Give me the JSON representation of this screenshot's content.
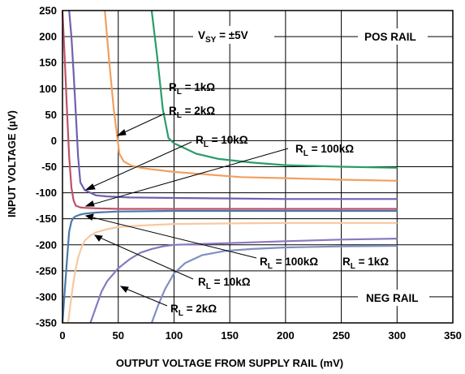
{
  "chart_data": {
    "type": "line",
    "title": "",
    "xlabel": "OUTPUT VOLTAGE FROM SUPPLY RAIL (mV)",
    "ylabel": "INPUT VOLTAGE (µV)",
    "xlim": [
      0,
      350
    ],
    "ylim": [
      -350,
      250
    ],
    "xticks": [
      "0",
      "50",
      "100",
      "150",
      "200",
      "250",
      "300",
      "350"
    ],
    "yticks": [
      "250",
      "200",
      "150",
      "100",
      "50",
      "0",
      "-50",
      "-100",
      "-150",
      "-200",
      "-250",
      "-300",
      "-350"
    ],
    "grid": true,
    "series_colors": {
      "pos_1k": "#2a9c6a",
      "pos_2k": "#f0a060",
      "pos_10k": "#7060b0",
      "pos_100k": "#c0506a",
      "neg_100k": "#4a78a8",
      "neg_1k": "#8090c0",
      "neg_10k": "#8a78c0",
      "neg_2k": "#f8c8a0"
    },
    "series": [
      {
        "x": [
          80,
          85,
          90,
          95,
          100,
          110,
          120,
          140,
          170,
          200,
          250,
          300
        ],
        "y": [
          250,
          160,
          60,
          5,
          -5,
          -15,
          -25,
          -35,
          -42,
          -47,
          -50,
          -52
        ]
      },
      {
        "x": [
          38,
          42,
          46,
          49,
          51,
          55,
          62,
          70,
          80,
          100,
          130,
          160,
          200,
          250,
          300
        ],
        "y": [
          250,
          150,
          60,
          10,
          -25,
          -40,
          -48,
          -52,
          -55,
          -60,
          -65,
          -70,
          -72,
          -75,
          -77
        ]
      },
      {
        "x": [
          6,
          8,
          10,
          12,
          14,
          16,
          20,
          25,
          30,
          40,
          60,
          100,
          150,
          200,
          250,
          300
        ],
        "y": [
          250,
          200,
          130,
          50,
          -30,
          -80,
          -95,
          -100,
          -105,
          -107,
          -109,
          -110,
          -111,
          -112,
          -112,
          -112
        ]
      },
      {
        "x": [
          0,
          2,
          4,
          6,
          8,
          10,
          12,
          16,
          20,
          30,
          50,
          100,
          200,
          300
        ],
        "y": [
          250,
          160,
          60,
          -30,
          -90,
          -115,
          -125,
          -128,
          -129,
          -130,
          -131,
          -131,
          -131,
          -131
        ]
      },
      {
        "x": [
          0,
          2,
          4,
          6,
          8,
          10,
          12,
          16,
          20,
          30,
          50,
          100,
          200,
          300
        ],
        "y": [
          -350,
          -290,
          -230,
          -175,
          -155,
          -148,
          -145,
          -142,
          -140,
          -138,
          -136,
          -135,
          -135,
          -135
        ]
      },
      {
        "x": [
          80,
          86,
          92,
          100,
          110,
          125,
          145,
          170,
          200,
          250,
          300
        ],
        "y": [
          -350,
          -315,
          -285,
          -255,
          -235,
          -220,
          -212,
          -208,
          -205,
          -203,
          -202
        ]
      },
      {
        "x": [
          25,
          30,
          35,
          40,
          50,
          60,
          70,
          80,
          90,
          100,
          130,
          160,
          200,
          250,
          300
        ],
        "y": [
          -350,
          -320,
          -290,
          -270,
          -245,
          -228,
          -215,
          -208,
          -203,
          -200,
          -198,
          -196,
          -193,
          -190,
          -188
        ]
      },
      {
        "x": [
          5,
          8,
          10,
          12,
          14,
          16,
          18,
          20,
          25,
          30,
          40,
          50,
          70,
          100,
          150,
          200,
          250,
          300
        ],
        "y": [
          -350,
          -300,
          -270,
          -245,
          -225,
          -212,
          -200,
          -192,
          -182,
          -176,
          -170,
          -166,
          -163,
          -160,
          -159,
          -158,
          -158,
          -158
        ]
      }
    ],
    "annotations": {
      "vsy_main": "V",
      "vsy_sub": "SY",
      "vsy_rest": " = ±5V",
      "pos_rail": "POS RAIL",
      "neg_rail": "NEG RAIL",
      "rl_main": "R",
      "rl_sub": "L",
      "pos_1k": " = 1kΩ",
      "pos_2k": " = 2kΩ",
      "pos_10k": " = 10kΩ",
      "pos_100k": " = 100kΩ",
      "neg_100k": " = 100kΩ",
      "neg_1k": " = 1kΩ",
      "neg_10k": " = 10kΩ",
      "neg_2k": " = 2kΩ"
    }
  }
}
